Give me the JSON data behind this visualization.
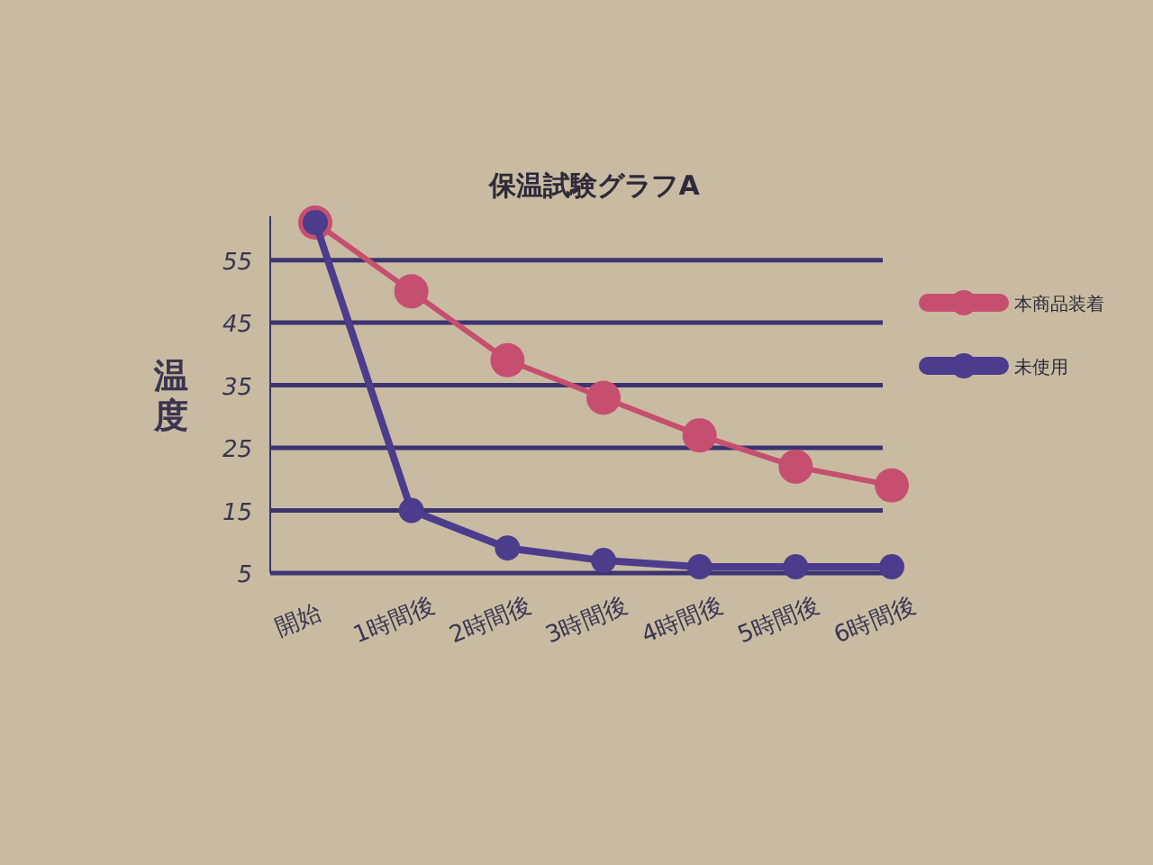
{
  "chart_data": {
    "type": "line",
    "title": "保温試験グラフA",
    "ylabel": "温度",
    "categories": [
      "開始",
      "1時間後",
      "2時間後",
      "3時間後",
      "4時間後",
      "5時間後",
      "6時間後"
    ],
    "series": [
      {
        "name": "本商品装着",
        "color": "#c64f70",
        "values": [
          61,
          50,
          39,
          33,
          27,
          22,
          19
        ]
      },
      {
        "name": "未使用",
        "color": "#4b3c8c",
        "values": [
          61,
          15,
          9,
          7,
          6,
          6,
          6
        ]
      }
    ],
    "ylim": [
      5,
      62
    ],
    "yticks": [
      5,
      15,
      25,
      35,
      45,
      55
    ],
    "grid": "y",
    "legend": "top right",
    "marker": "circle",
    "line_style": "solid"
  }
}
